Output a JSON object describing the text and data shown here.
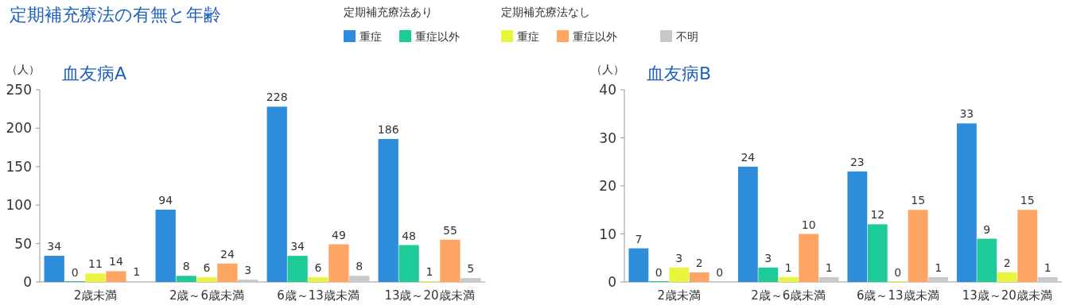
{
  "chart_data": [
    {
      "type": "bar",
      "title": "定期補充療法の有無と年齢",
      "subtitle": "血友病A",
      "ylabel": "（人）",
      "annotations": [
        "定期補充療法あり",
        "定期補充療法なし"
      ],
      "categories": [
        "2歳未満",
        "2歳～6歳未満",
        "6歳～13歳未満",
        "13歳～20歳未満"
      ],
      "series": [
        {
          "name": "重症",
          "color": "#2e8ddb",
          "values": [
            34,
            94,
            228,
            186
          ]
        },
        {
          "name": "重症以外",
          "color": "#1ecb98",
          "values": [
            0,
            8,
            34,
            48
          ]
        },
        {
          "name": "重症",
          "color": "#e8f53a",
          "values": [
            11,
            6,
            6,
            1
          ]
        },
        {
          "name": "重症以外",
          "color": "#ffa563",
          "values": [
            14,
            24,
            49,
            55
          ]
        },
        {
          "name": "不明",
          "color": "#c8c8c8",
          "values": [
            1,
            3,
            8,
            5
          ]
        }
      ],
      "ylim": [
        0,
        250
      ],
      "yticks": [
        0,
        50,
        100,
        150,
        200,
        250
      ],
      "data_labels": true,
      "legend": "top"
    },
    {
      "type": "bar",
      "subtitle": "血友病B",
      "ylabel": "（人）",
      "categories": [
        "2歳未満",
        "2歳～6歳未満",
        "6歳～13歳未満",
        "13歳～20歳未満"
      ],
      "series": [
        {
          "color": "#2e8ddb",
          "values": [
            7,
            24,
            23,
            33
          ]
        },
        {
          "color": "#1ecb98",
          "values": [
            0,
            3,
            12,
            9
          ]
        },
        {
          "color": "#e8f53a",
          "values": [
            3,
            1,
            0,
            2
          ]
        },
        {
          "color": "#ffa563",
          "values": [
            2,
            10,
            15,
            15
          ]
        },
        {
          "color": "#c8c8c8",
          "values": [
            0,
            1,
            1,
            1
          ]
        }
      ],
      "ylim": [
        0,
        40
      ],
      "yticks": [
        0,
        10,
        20,
        30,
        40
      ],
      "data_labels": true
    }
  ]
}
